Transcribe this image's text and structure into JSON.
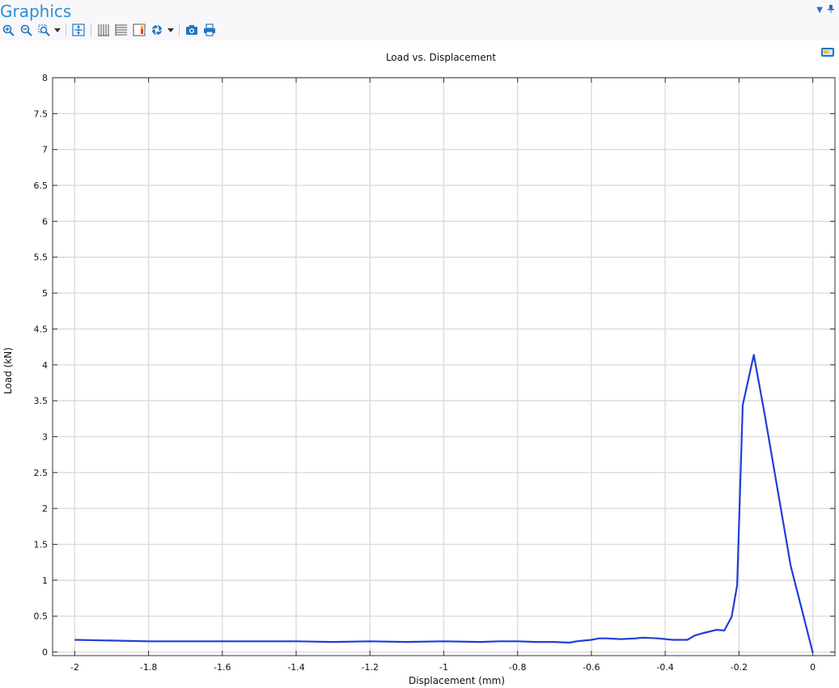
{
  "header": {
    "title": "Graphics",
    "menu_icon": "chevron-down-icon",
    "pin_icon": "pin-icon"
  },
  "toolbar": {
    "buttons": [
      {
        "name": "zoom-in-button",
        "icon": "zoom-in-icon"
      },
      {
        "name": "zoom-out-button",
        "icon": "zoom-out-icon"
      },
      {
        "name": "zoom-box-button",
        "icon": "zoom-box-icon"
      },
      {
        "name": "zoom-extents-button",
        "icon": "zoom-extents-icon"
      },
      {
        "name": "x-grid-button",
        "icon": "x-grid-icon"
      },
      {
        "name": "y-grid-button",
        "icon": "y-grid-icon"
      },
      {
        "name": "legend-button",
        "icon": "legend-icon"
      },
      {
        "name": "scene-light-button",
        "icon": "scene-light-icon"
      },
      {
        "name": "image-snapshot-button",
        "icon": "camera-icon"
      },
      {
        "name": "print-button",
        "icon": "print-icon"
      }
    ]
  },
  "chart_data": {
    "type": "line",
    "title": "Load vs. Displacement",
    "xlabel": "Displacement (mm)",
    "ylabel": "Load (kN)",
    "xlim": [
      -2.06,
      0.06
    ],
    "ylim": [
      -0.05,
      8.0
    ],
    "xticks": [
      -2,
      -1.8,
      -1.6,
      -1.4,
      -1.2,
      -1,
      -0.8,
      -0.6,
      -0.4,
      -0.2,
      0
    ],
    "yticks": [
      0,
      0.5,
      1,
      1.5,
      2,
      2.5,
      3,
      3.5,
      4,
      4.5,
      5,
      5.5,
      6,
      6.5,
      7,
      7.5,
      8
    ],
    "grid": true,
    "series": [
      {
        "color": "#1f3fd6",
        "x": [
          -2.0,
          -1.9,
          -1.8,
          -1.7,
          -1.6,
          -1.5,
          -1.4,
          -1.3,
          -1.2,
          -1.1,
          -1.0,
          -0.9,
          -0.85,
          -0.8,
          -0.75,
          -0.7,
          -0.66,
          -0.64,
          -0.62,
          -0.6,
          -0.58,
          -0.56,
          -0.52,
          -0.48,
          -0.46,
          -0.42,
          -0.38,
          -0.36,
          -0.34,
          -0.32,
          -0.3,
          -0.26,
          -0.24,
          -0.22,
          -0.205,
          -0.19,
          -0.16,
          -0.13,
          -0.1,
          -0.06,
          -0.03,
          0.0
        ],
        "y": [
          0.17,
          0.16,
          0.15,
          0.15,
          0.15,
          0.15,
          0.15,
          0.14,
          0.15,
          0.14,
          0.15,
          0.14,
          0.15,
          0.15,
          0.14,
          0.14,
          0.13,
          0.15,
          0.16,
          0.17,
          0.19,
          0.19,
          0.18,
          0.19,
          0.2,
          0.19,
          0.17,
          0.17,
          0.17,
          0.23,
          0.26,
          0.31,
          0.3,
          0.49,
          0.93,
          3.44,
          4.14,
          3.3,
          2.4,
          1.2,
          0.6,
          -0.01
        ]
      }
    ]
  }
}
